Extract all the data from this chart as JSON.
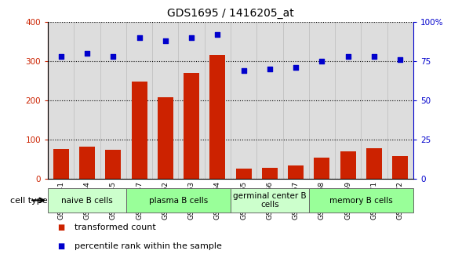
{
  "title": "GDS1695 / 1416205_at",
  "samples": [
    "GSM94741",
    "GSM94744",
    "GSM94745",
    "GSM94747",
    "GSM94762",
    "GSM94763",
    "GSM94764",
    "GSM94765",
    "GSM94766",
    "GSM94767",
    "GSM94768",
    "GSM94769",
    "GSM94771",
    "GSM94772"
  ],
  "transformed_count": [
    75,
    82,
    73,
    247,
    208,
    270,
    315,
    25,
    27,
    33,
    53,
    70,
    78,
    57
  ],
  "percentile_rank": [
    78,
    80,
    78,
    90,
    88,
    90,
    92,
    69,
    70,
    71,
    75,
    78,
    78,
    76
  ],
  "cell_groups": [
    {
      "label": "naive B cells",
      "start": 0,
      "end": 3,
      "color": "#ccffcc"
    },
    {
      "label": "plasma B cells",
      "start": 3,
      "end": 7,
      "color": "#99ff99"
    },
    {
      "label": "germinal center B\ncells",
      "start": 7,
      "end": 10,
      "color": "#ccffcc"
    },
    {
      "label": "memory B cells",
      "start": 10,
      "end": 14,
      "color": "#99ff99"
    }
  ],
  "bar_color": "#cc2200",
  "dot_color": "#0000cc",
  "left_ylim": [
    0,
    400
  ],
  "left_yticks": [
    0,
    100,
    200,
    300,
    400
  ],
  "right_ylim": [
    0,
    100
  ],
  "right_yticks": [
    0,
    25,
    50,
    75,
    100
  ],
  "right_yticklabels": [
    "0",
    "25",
    "50",
    "75",
    "100%"
  ],
  "legend_items": [
    {
      "color": "#cc2200",
      "marker": "s",
      "label": "transformed count"
    },
    {
      "color": "#0000cc",
      "marker": "s",
      "label": "percentile rank within the sample"
    }
  ],
  "cell_type_label": "cell type",
  "plot_bg_color": "#dddddd",
  "fig_bg_color": "#ffffff",
  "grid_color": "#000000"
}
